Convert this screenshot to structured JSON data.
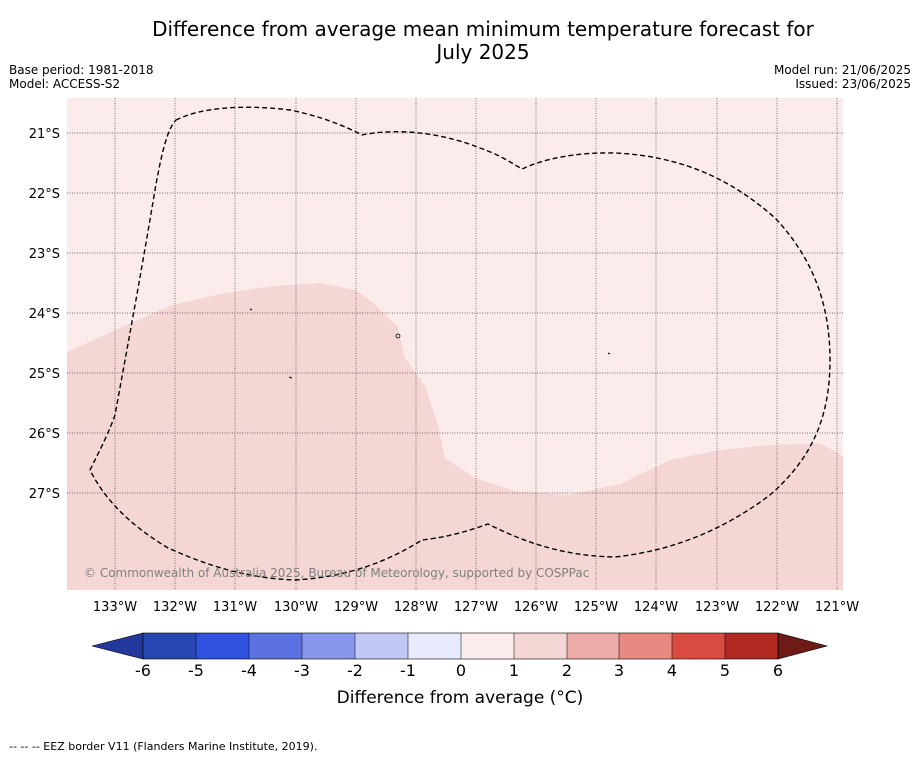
{
  "title": {
    "line1": "Difference from average mean minimum temperature forecast for",
    "line2": "July 2025"
  },
  "meta": {
    "base_period": "Base period: 1981-2018",
    "model": "Model: ACCESS-S2",
    "model_run": "Model run: 21/06/2025",
    "issued": "Issued: 23/06/2025"
  },
  "map": {
    "lon_ticks": [
      "133°W",
      "132°W",
      "131°W",
      "130°W",
      "129°W",
      "128°W",
      "127°W",
      "126°W",
      "125°W",
      "124°W",
      "123°W",
      "122°W",
      "121°W"
    ],
    "lat_ticks": [
      "21°S",
      "22°S",
      "23°S",
      "24°S",
      "25°S",
      "26°S",
      "27°S"
    ],
    "copyright": "© Commonwealth of Australia 2025, Bureau of Meteorology, supported by COSPPac",
    "zone_colors": {
      "zero_to_one": "#fbeceb",
      "one_to_two": "#f4d7d5"
    }
  },
  "colorbar": {
    "ticks": [
      "-6",
      "-5",
      "-4",
      "-3",
      "-2",
      "-1",
      "0",
      "1",
      "2",
      "3",
      "4",
      "5",
      "6"
    ],
    "colors": [
      "#24379c",
      "#2846b4",
      "#3052e0",
      "#5c72e2",
      "#8897ec",
      "#c1c8f4",
      "#e8ebfb",
      "#fbeceb",
      "#f4d7d5",
      "#edaca7",
      "#e88982",
      "#d94a40",
      "#b02a22",
      "#6e1a16"
    ],
    "label": "Difference from average (°C)"
  },
  "footer": "--  --  -- EEZ border V11 (Flanders Marine Institute, 2019)."
}
